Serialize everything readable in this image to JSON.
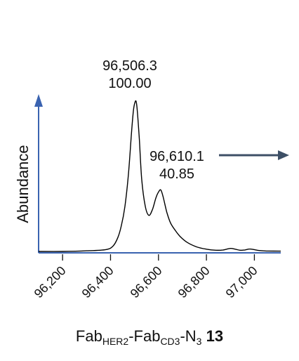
{
  "chart_data": {
    "type": "line",
    "title": "",
    "xlabel": "",
    "ylabel": "Abundance",
    "xlim": [
      96100,
      97110
    ],
    "ylim": [
      0,
      100
    ],
    "x_ticks": [
      96200,
      96400,
      96600,
      96800,
      97000
    ],
    "x_tick_labels": [
      "96,200",
      "96,400",
      "96,600",
      "96,800",
      "97,000"
    ],
    "series": [
      {
        "x": [
          96100,
          96200,
          96300,
          96380,
          96410,
          96430,
          96445,
          96460,
          96475,
          96487,
          96495,
          96500,
          96506.3,
          96512,
          96520,
          96530,
          96545,
          96560,
          96575,
          96590,
          96602,
          96610.1,
          96620,
          96635,
          96650,
          96670,
          96690,
          96720,
          96760,
          96800,
          96840,
          96870,
          96900,
          96920,
          96940,
          96960,
          96980,
          97000,
          97020,
          97050,
          97110
        ],
        "y": [
          0,
          0,
          0.4,
          1.2,
          3.5,
          9,
          17,
          30,
          52,
          78,
          93,
          98,
          100,
          93,
          75,
          48,
          30,
          24,
          28,
          36,
          40,
          40.85,
          36,
          26,
          19,
          14,
          10,
          6,
          3,
          1.5,
          0.8,
          1,
          2,
          1.5,
          0.8,
          1,
          1.6,
          1.2,
          0.6,
          0.3,
          0.2
        ]
      }
    ],
    "peaks": [
      {
        "mass": "96,506.3",
        "abundance": "100.00"
      },
      {
        "mass": "96,610.1",
        "abundance": "40.85"
      }
    ],
    "colors": {
      "axis": "#3a63b0",
      "trace": "#000000",
      "arrow": "#3d4f66"
    }
  },
  "compound": {
    "fab1": "Fab",
    "sub1": "HER2",
    "dash1": "-Fab",
    "sub2": "CD3",
    "dash2": "-N",
    "sub3": "3",
    "number": "13"
  }
}
